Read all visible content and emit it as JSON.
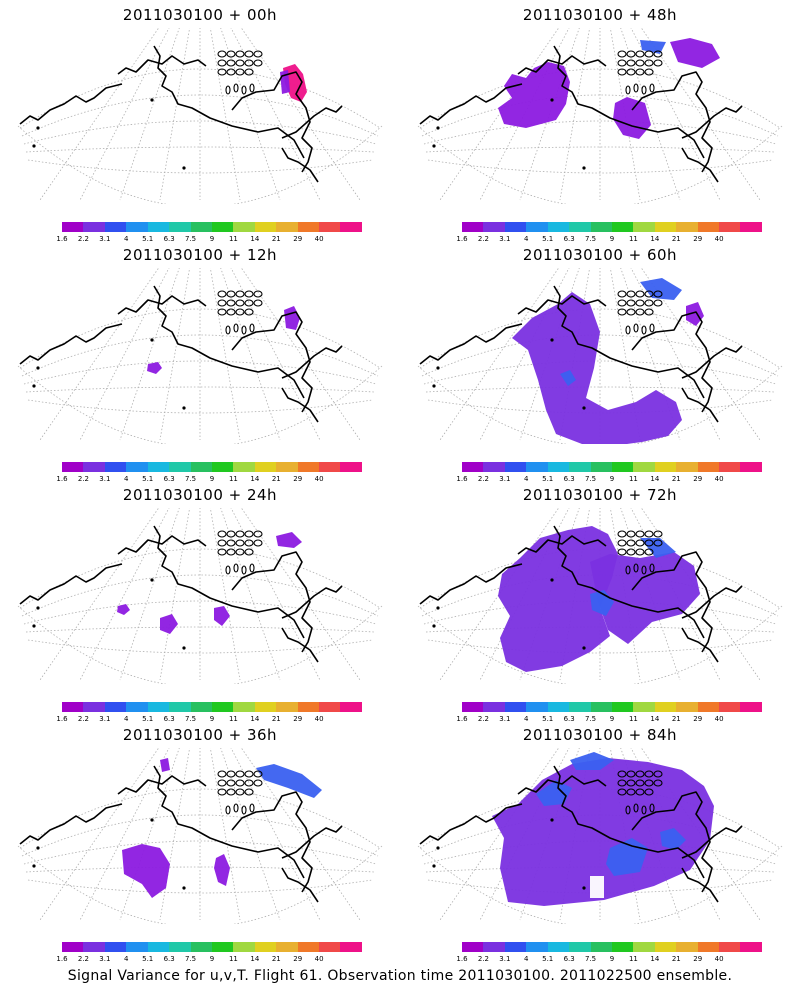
{
  "panels": [
    {
      "title": "2011030100 + 00h"
    },
    {
      "title": "2011030100 + 48h"
    },
    {
      "title": "2011030100 + 12h"
    },
    {
      "title": "2011030100 + 60h"
    },
    {
      "title": "2011030100 + 24h"
    },
    {
      "title": "2011030100 + 72h"
    },
    {
      "title": "2011030100 + 36h"
    },
    {
      "title": "2011030100 + 84h"
    }
  ],
  "legend": {
    "labels": [
      "1.6",
      "2.2",
      "3.1",
      "4",
      "5.1",
      "6.3",
      "7.5",
      "9",
      "11",
      "14",
      "21",
      "29",
      "40"
    ],
    "colors": [
      "#a000c8",
      "#7a30e0",
      "#3050f0",
      "#2090f0",
      "#18b8e0",
      "#20c8a8",
      "#28c060",
      "#20c820",
      "#a0d840",
      "#e0d020",
      "#e8b030",
      "#f07828",
      "#f04848",
      "#ee1188"
    ]
  },
  "footer": "Signal Variance for u,v,T. Flight 61. Observation time 2011030100. 2011022500 ensemble."
}
